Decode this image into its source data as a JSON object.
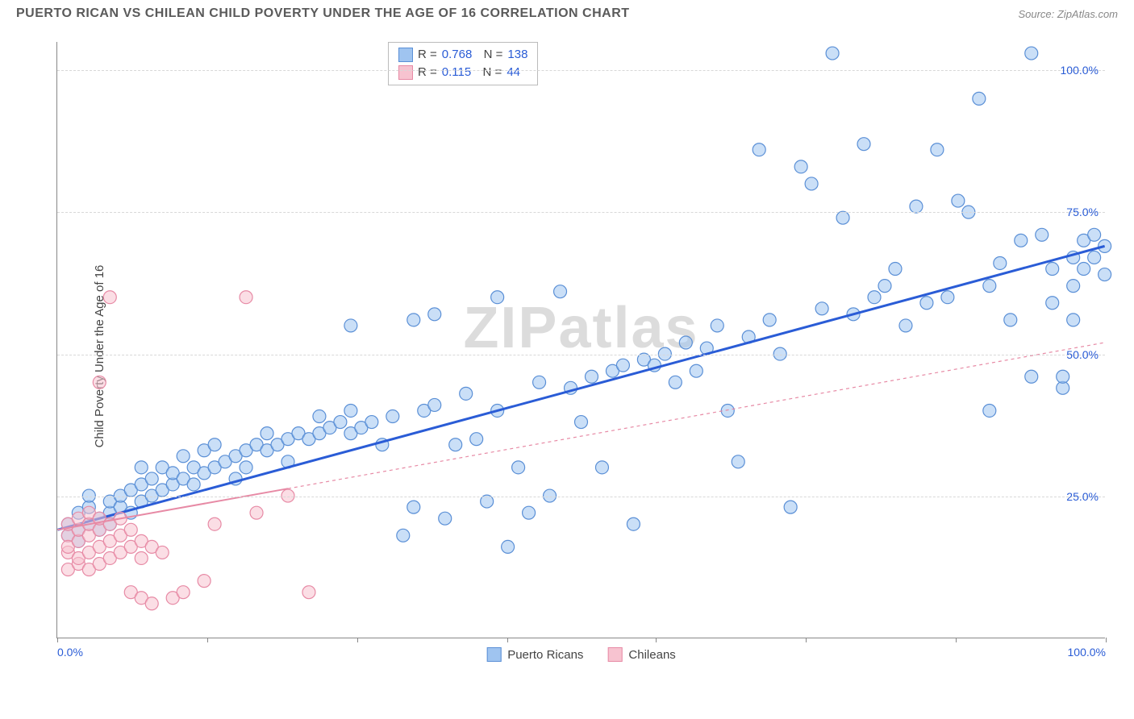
{
  "header": {
    "title": "PUERTO RICAN VS CHILEAN CHILD POVERTY UNDER THE AGE OF 16 CORRELATION CHART",
    "source": "Source: ZipAtlas.com"
  },
  "chart": {
    "type": "scatter",
    "ylabel": "Child Poverty Under the Age of 16",
    "watermark": "ZIPatlas",
    "xlim": [
      0,
      100
    ],
    "ylim": [
      0,
      105
    ],
    "y_ticks": [
      25,
      50,
      75,
      100
    ],
    "y_tick_labels": [
      "25.0%",
      "50.0%",
      "75.0%",
      "100.0%"
    ],
    "x_ticks": [
      0,
      14.3,
      28.6,
      42.9,
      57.1,
      71.4,
      85.7,
      100
    ],
    "x_tick_labels_visible": {
      "0": "0.0%",
      "100": "100.0%"
    },
    "grid_color": "#d8d8d8",
    "axis_color": "#888888",
    "background_color": "#ffffff",
    "tick_label_color": "#2a5cd6",
    "marker_radius": 8,
    "marker_opacity": 0.55,
    "series": [
      {
        "name": "Puerto Ricans",
        "color_fill": "#9fc4f0",
        "color_stroke": "#5a8fd6",
        "trend_color": "#2a5cd6",
        "trend_width": 3,
        "trend_dash": "none",
        "r": "0.768",
        "n": "138",
        "trend": {
          "x1": 0,
          "y1": 19,
          "x2": 100,
          "y2": 69
        },
        "points": [
          [
            1,
            18
          ],
          [
            1,
            20
          ],
          [
            2,
            19
          ],
          [
            2,
            22
          ],
          [
            2,
            17
          ],
          [
            3,
            20
          ],
          [
            3,
            23
          ],
          [
            3,
            25
          ],
          [
            4,
            21
          ],
          [
            4,
            19
          ],
          [
            5,
            22
          ],
          [
            5,
            24
          ],
          [
            5,
            20
          ],
          [
            6,
            23
          ],
          [
            6,
            25
          ],
          [
            7,
            22
          ],
          [
            7,
            26
          ],
          [
            8,
            24
          ],
          [
            8,
            27
          ],
          [
            8,
            30
          ],
          [
            9,
            25
          ],
          [
            9,
            28
          ],
          [
            10,
            26
          ],
          [
            10,
            30
          ],
          [
            11,
            27
          ],
          [
            11,
            29
          ],
          [
            12,
            28
          ],
          [
            12,
            32
          ],
          [
            13,
            30
          ],
          [
            13,
            27
          ],
          [
            14,
            29
          ],
          [
            14,
            33
          ],
          [
            15,
            30
          ],
          [
            15,
            34
          ],
          [
            16,
            31
          ],
          [
            17,
            32
          ],
          [
            17,
            28
          ],
          [
            18,
            33
          ],
          [
            18,
            30
          ],
          [
            19,
            34
          ],
          [
            20,
            33
          ],
          [
            20,
            36
          ],
          [
            21,
            34
          ],
          [
            22,
            35
          ],
          [
            22,
            31
          ],
          [
            23,
            36
          ],
          [
            24,
            35
          ],
          [
            25,
            36
          ],
          [
            25,
            39
          ],
          [
            26,
            37
          ],
          [
            27,
            38
          ],
          [
            28,
            36
          ],
          [
            28,
            40
          ],
          [
            29,
            37
          ],
          [
            30,
            38
          ],
          [
            31,
            34
          ],
          [
            32,
            39
          ],
          [
            33,
            18
          ],
          [
            34,
            23
          ],
          [
            35,
            40
          ],
          [
            36,
            41
          ],
          [
            37,
            21
          ],
          [
            38,
            34
          ],
          [
            39,
            43
          ],
          [
            40,
            35
          ],
          [
            41,
            24
          ],
          [
            42,
            60
          ],
          [
            42,
            40
          ],
          [
            43,
            16
          ],
          [
            44,
            30
          ],
          [
            45,
            22
          ],
          [
            46,
            45
          ],
          [
            47,
            25
          ],
          [
            48,
            61
          ],
          [
            49,
            44
          ],
          [
            50,
            38
          ],
          [
            51,
            46
          ],
          [
            52,
            30
          ],
          [
            53,
            47
          ],
          [
            54,
            48
          ],
          [
            55,
            20
          ],
          [
            56,
            49
          ],
          [
            57,
            48
          ],
          [
            58,
            50
          ],
          [
            59,
            45
          ],
          [
            60,
            52
          ],
          [
            61,
            47
          ],
          [
            62,
            51
          ],
          [
            63,
            55
          ],
          [
            64,
            40
          ],
          [
            65,
            31
          ],
          [
            66,
            53
          ],
          [
            67,
            86
          ],
          [
            68,
            56
          ],
          [
            69,
            50
          ],
          [
            70,
            23
          ],
          [
            71,
            83
          ],
          [
            72,
            80
          ],
          [
            73,
            58
          ],
          [
            74,
            103
          ],
          [
            75,
            74
          ],
          [
            76,
            57
          ],
          [
            77,
            87
          ],
          [
            78,
            60
          ],
          [
            79,
            62
          ],
          [
            80,
            65
          ],
          [
            81,
            55
          ],
          [
            82,
            76
          ],
          [
            83,
            59
          ],
          [
            84,
            86
          ],
          [
            85,
            60
          ],
          [
            86,
            77
          ],
          [
            87,
            75
          ],
          [
            88,
            95
          ],
          [
            89,
            62
          ],
          [
            90,
            66
          ],
          [
            91,
            56
          ],
          [
            92,
            70
          ],
          [
            93,
            103
          ],
          [
            94,
            71
          ],
          [
            95,
            65
          ],
          [
            96,
            44
          ],
          [
            96,
            46
          ],
          [
            97,
            67
          ],
          [
            97,
            62
          ],
          [
            98,
            70
          ],
          [
            98,
            65
          ],
          [
            99,
            71
          ],
          [
            99,
            67
          ],
          [
            100,
            69
          ],
          [
            100,
            64
          ],
          [
            97,
            56
          ],
          [
            95,
            59
          ],
          [
            93,
            46
          ],
          [
            89,
            40
          ],
          [
            34,
            56
          ],
          [
            36,
            57
          ],
          [
            28,
            55
          ]
        ]
      },
      {
        "name": "Chileans",
        "color_fill": "#f7c3d0",
        "color_stroke": "#e78aa5",
        "trend_color": "#e78aa5",
        "trend_width": 2,
        "trend_dash": "4,4",
        "r": "0.115",
        "n": "44",
        "trend": {
          "x1": 0,
          "y1": 19,
          "x2": 100,
          "y2": 52
        },
        "trend_solid_until_x": 22,
        "points": [
          [
            1,
            12
          ],
          [
            1,
            15
          ],
          [
            1,
            18
          ],
          [
            1,
            20
          ],
          [
            1,
            16
          ],
          [
            2,
            13
          ],
          [
            2,
            17
          ],
          [
            2,
            19
          ],
          [
            2,
            21
          ],
          [
            2,
            14
          ],
          [
            3,
            15
          ],
          [
            3,
            18
          ],
          [
            3,
            12
          ],
          [
            3,
            20
          ],
          [
            3,
            22
          ],
          [
            4,
            16
          ],
          [
            4,
            19
          ],
          [
            4,
            21
          ],
          [
            4,
            13
          ],
          [
            4,
            45
          ],
          [
            5,
            17
          ],
          [
            5,
            14
          ],
          [
            5,
            20
          ],
          [
            5,
            60
          ],
          [
            6,
            18
          ],
          [
            6,
            15
          ],
          [
            6,
            21
          ],
          [
            7,
            16
          ],
          [
            7,
            19
          ],
          [
            7,
            8
          ],
          [
            8,
            17
          ],
          [
            8,
            7
          ],
          [
            8,
            14
          ],
          [
            9,
            16
          ],
          [
            9,
            6
          ],
          [
            10,
            15
          ],
          [
            11,
            7
          ],
          [
            12,
            8
          ],
          [
            14,
            10
          ],
          [
            15,
            20
          ],
          [
            18,
            60
          ],
          [
            19,
            22
          ],
          [
            22,
            25
          ],
          [
            24,
            8
          ]
        ]
      }
    ],
    "bottom_legend": [
      {
        "label": "Puerto Ricans",
        "fill": "#9fc4f0",
        "stroke": "#5a8fd6"
      },
      {
        "label": "Chileans",
        "fill": "#f7c3d0",
        "stroke": "#e78aa5"
      }
    ]
  }
}
